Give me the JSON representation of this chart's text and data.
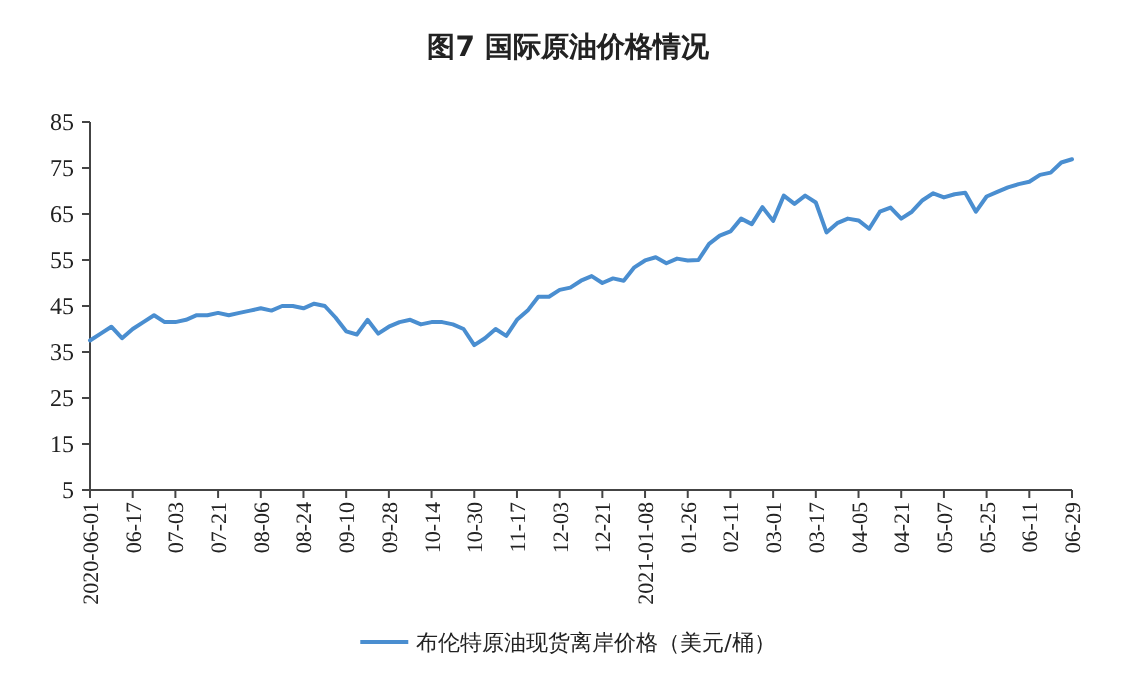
{
  "chart_data": {
    "type": "line",
    "title": "图7  国际原油价格情况",
    "categories": [
      "2020-06-01",
      null,
      null,
      null,
      "06-17",
      null,
      null,
      null,
      "07-03",
      null,
      null,
      null,
      "07-21",
      null,
      null,
      null,
      "08-06",
      null,
      null,
      null,
      "08-24",
      null,
      null,
      null,
      "09-10",
      null,
      null,
      null,
      "09-28",
      null,
      null,
      null,
      "10-14",
      null,
      null,
      null,
      "10-30",
      null,
      null,
      null,
      "11-17",
      null,
      null,
      null,
      "12-03",
      null,
      null,
      null,
      "12-21",
      null,
      null,
      null,
      "2021-01-08",
      null,
      null,
      null,
      "01-26",
      null,
      null,
      null,
      "02-11",
      null,
      null,
      null,
      "03-01",
      null,
      null,
      null,
      "03-17",
      null,
      null,
      null,
      "04-05",
      null,
      null,
      null,
      "04-21",
      null,
      null,
      null,
      "05-07",
      null,
      null,
      null,
      "05-25",
      null,
      null,
      null,
      "06-11",
      null,
      null,
      null,
      "06-29"
    ],
    "series": [
      {
        "name": "布伦特原油现货离岸价格（美元/桶）",
        "color": "#4a8ed0",
        "values": [
          37.5,
          39,
          40.5,
          38,
          40,
          41.5,
          43,
          41.5,
          41.5,
          42,
          43,
          43,
          43.5,
          43,
          43.5,
          44,
          44.5,
          44,
          45,
          45,
          44.5,
          45.5,
          45,
          42.5,
          39.5,
          38.8,
          42,
          39,
          40.5,
          41.5,
          42,
          41,
          41.5,
          41.5,
          41,
          40,
          36.5,
          38,
          40,
          38.5,
          42,
          44,
          47,
          47,
          48.5,
          49,
          50.5,
          51.5,
          50,
          51,
          50.5,
          53.4,
          54.9,
          55.6,
          54.3,
          55.3,
          54.9,
          55,
          58.5,
          60.3,
          61.2,
          64,
          62.8,
          66.5,
          63.5,
          69,
          67.2,
          69,
          67.5,
          61,
          63,
          64,
          63.6,
          61.8,
          65.5,
          66.4,
          64,
          65.5,
          68,
          69.5,
          68.6,
          69.3,
          69.6,
          65.5,
          68.8,
          69.8,
          70.8,
          71.5,
          72,
          73.5,
          74,
          76.2,
          76.9
        ]
      }
    ],
    "ylim": [
      5,
      85
    ],
    "yticks": [
      5,
      15,
      25,
      35,
      45,
      55,
      65,
      75,
      85
    ],
    "grid": false,
    "legend": "bottom",
    "marker": "none",
    "line_style": "solid"
  }
}
